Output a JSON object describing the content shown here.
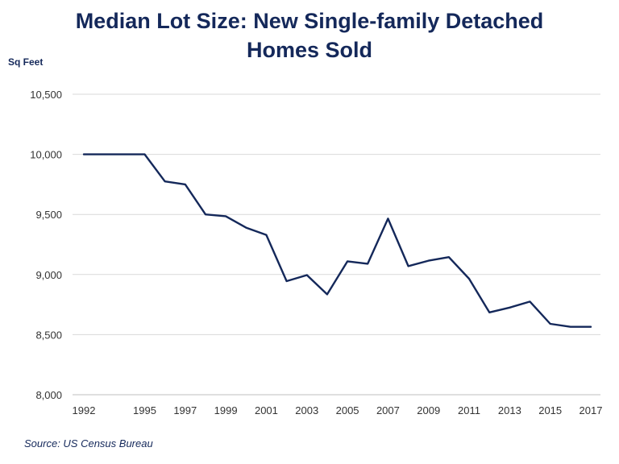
{
  "chart_data": {
    "type": "line",
    "title_line1": "Median Lot Size: New Single-family Detached",
    "title_line2": "Homes Sold",
    "ylabel": "Sq Feet",
    "xlabel": "",
    "source": "Source: US Census Bureau",
    "ylim": [
      8000,
      10500
    ],
    "yticks": [
      8000,
      8500,
      9000,
      9500,
      10000,
      10500
    ],
    "ytick_labels": [
      "8,000",
      "8,500",
      "9,000",
      "9,500",
      "10,000",
      "10,500"
    ],
    "xlim": [
      1992,
      2017
    ],
    "xticks": [
      1992,
      1995,
      1997,
      1999,
      2001,
      2003,
      2005,
      2007,
      2009,
      2011,
      2013,
      2015,
      2017
    ],
    "xtick_labels": [
      "1992",
      "1995",
      "1997",
      "1999",
      "2001",
      "2003",
      "2005",
      "2007",
      "2009",
      "2011",
      "2013",
      "2015",
      "2017"
    ],
    "grid": true,
    "series": [
      {
        "name": "Median Lot Size",
        "x": [
          1992,
          1993,
          1994,
          1995,
          1996,
          1997,
          1998,
          1999,
          2000,
          2001,
          2002,
          2003,
          2004,
          2005,
          2006,
          2007,
          2008,
          2009,
          2010,
          2011,
          2012,
          2013,
          2014,
          2015,
          2016,
          2017
        ],
        "values": [
          10000,
          10000,
          10000,
          10000,
          9775,
          9750,
          9500,
          9485,
          9390,
          9330,
          8945,
          8995,
          8835,
          9110,
          9090,
          9465,
          9070,
          9115,
          9145,
          8965,
          8685,
          8725,
          8775,
          8590,
          8565,
          8565
        ]
      }
    ]
  },
  "colors": {
    "line": "#14285a",
    "grid": "#d9d9d9",
    "title": "#14285a"
  }
}
